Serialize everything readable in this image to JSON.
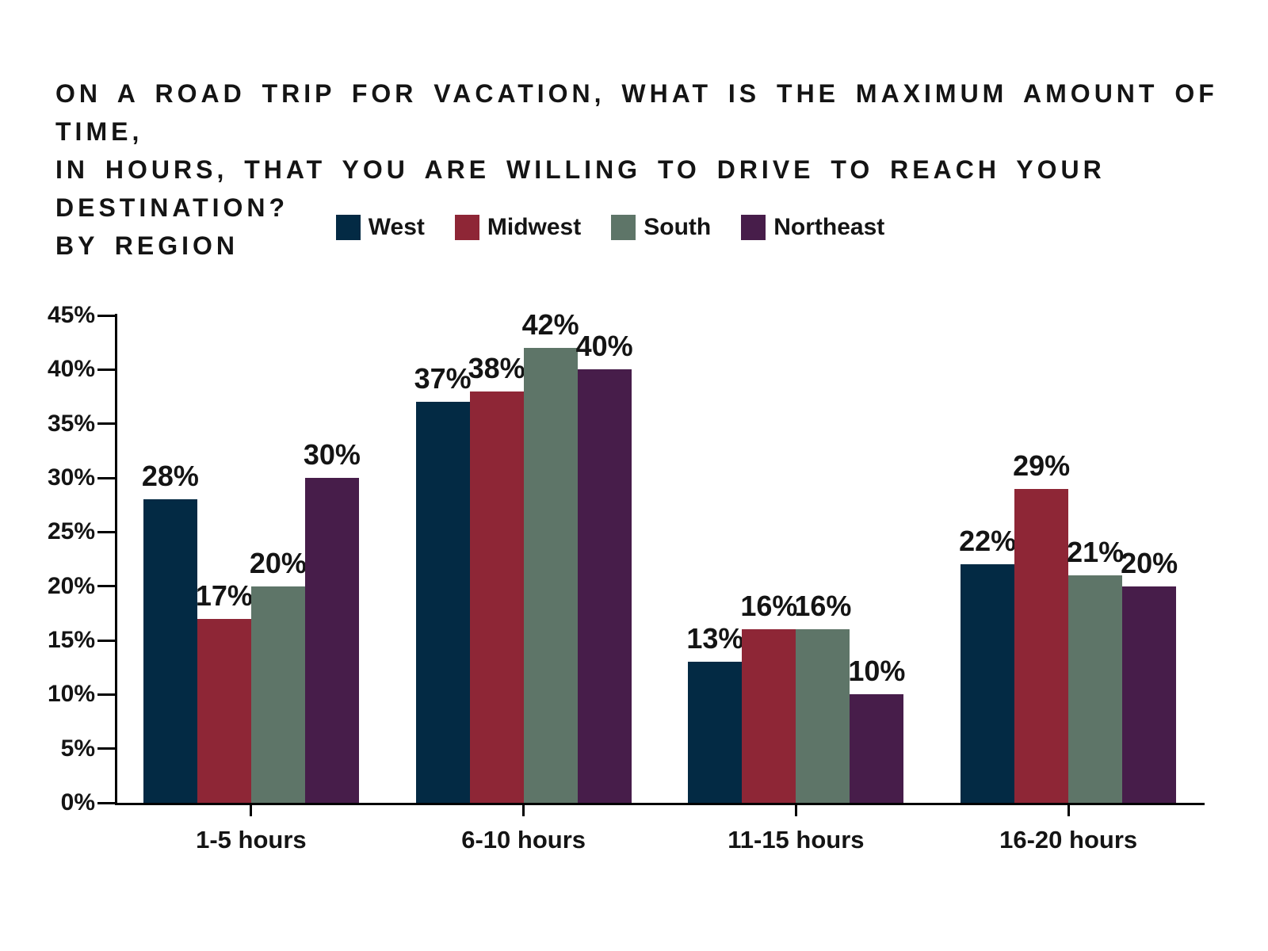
{
  "header": {
    "title_lines": [
      "ON A ROAD TRIP FOR VACATION, WHAT IS THE MAXIMUM AMOUNT OF TIME,",
      "IN HOURS, THAT YOU ARE WILLING TO DRIVE TO REACH YOUR DESTINATION?",
      "BY REGION"
    ]
  },
  "chart_data": {
    "type": "bar",
    "title": "On a road trip for vacation, what is the maximum amount of time, in hours, that you are willing to drive to reach your destination? By region",
    "categories": [
      "1-5 hours",
      "6-10 hours",
      "11-15 hours",
      "16-20 hours"
    ],
    "series": [
      {
        "name": "West",
        "color": "#032a44",
        "values": [
          28,
          37,
          13,
          22
        ]
      },
      {
        "name": "Midwest",
        "color": "#8e2636",
        "values": [
          17,
          38,
          16,
          29
        ]
      },
      {
        "name": "South",
        "color": "#5e7568",
        "values": [
          20,
          42,
          16,
          21
        ]
      },
      {
        "name": "Northeast",
        "color": "#471d4a",
        "values": [
          30,
          40,
          10,
          20
        ]
      }
    ],
    "value_suffix": "%",
    "xlabel": "",
    "ylabel": "",
    "ylim": [
      0,
      45
    ],
    "ytick_step": 5,
    "ytick_suffix": "%",
    "grid": false,
    "legend_position": "top-center",
    "value_labels": true,
    "axis_color": "#000000",
    "text_color": "#141414",
    "background": "#ffffff"
  }
}
